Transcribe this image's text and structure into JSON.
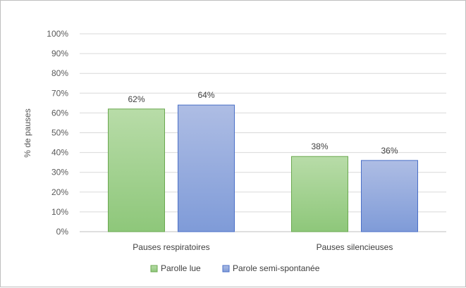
{
  "chart_data": {
    "type": "bar",
    "title": "",
    "xlabel": "",
    "ylabel": "% de pauses",
    "ylim": [
      0,
      100
    ],
    "yticks": [
      "0%",
      "10%",
      "20%",
      "30%",
      "40%",
      "50%",
      "60%",
      "70%",
      "80%",
      "90%",
      "100%"
    ],
    "categories": [
      "Pauses respiratoires",
      "Pauses silencieuses"
    ],
    "series": [
      {
        "name": "Parolle lue",
        "values": [
          62,
          38
        ],
        "labels": [
          "62%",
          "38%"
        ],
        "fill_top": "#b8dca8",
        "fill_bottom": "#8ec77a",
        "stroke": "#6aa84f"
      },
      {
        "name": "Parole semi-spontanée",
        "values": [
          64,
          36
        ],
        "labels": [
          "64%",
          "36%"
        ],
        "fill_top": "#aebde4",
        "fill_bottom": "#7f9bd8",
        "stroke": "#4a6fc7"
      }
    ],
    "grid": true,
    "legend_position": "bottom"
  }
}
